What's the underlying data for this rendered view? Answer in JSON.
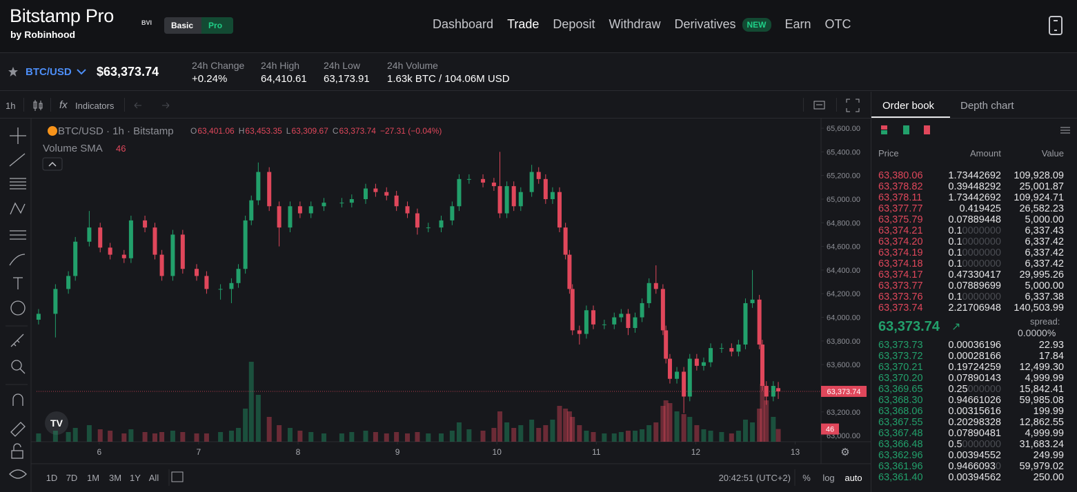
{
  "header": {
    "logo": "Bitstamp Pro",
    "logo_badge": "BVI",
    "logo_sub": "by Robinhood",
    "modes": [
      "Basic",
      "Pro"
    ],
    "nav": [
      {
        "label": "Dashboard"
      },
      {
        "label": "Trade"
      },
      {
        "label": "Deposit"
      },
      {
        "label": "Withdraw"
      },
      {
        "label": "Derivatives",
        "badge": "NEW"
      },
      {
        "label": "Earn"
      },
      {
        "label": "OTC"
      }
    ]
  },
  "ticker": {
    "pair": "BTC/USD",
    "price": "$63,373.74",
    "stats": [
      {
        "label": "24h Change",
        "value": "+0.24%"
      },
      {
        "label": "24h High",
        "value": "64,410.61"
      },
      {
        "label": "24h Low",
        "value": "63,173.91"
      },
      {
        "label": "24h Volume",
        "value": "1.63k BTC / 104.06M USD"
      }
    ]
  },
  "toolbar": {
    "interval": "1h",
    "indicators": "Indicators"
  },
  "chart_data": {
    "type": "candlestick",
    "legend": {
      "title": "BTC/USD · 1h · Bitstamp",
      "ohlc": [
        {
          "label": "O",
          "value": "63,401.06"
        },
        {
          "label": "H",
          "value": "63,453.35"
        },
        {
          "label": "L",
          "value": "63,309.67"
        },
        {
          "label": "C",
          "value": "63,373.74"
        }
      ],
      "change": "−27.31 (−0.04%)"
    },
    "indicator": {
      "name": "Volume SMA",
      "value": "46"
    },
    "price_tag": "63,373.74",
    "volume_tag": "46",
    "up_color": "#22a06b",
    "down_color": "#e0475b",
    "x": [
      5.39,
      5.56,
      5.69,
      5.76,
      5.9,
      6.01,
      6.11,
      6.25,
      6.32,
      6.46,
      6.56,
      6.63,
      6.74,
      6.84,
      6.98,
      7.08,
      7.22,
      7.33,
      7.4,
      7.47,
      7.53,
      7.6,
      7.71,
      7.81,
      7.92,
      8.02,
      8.13,
      8.26,
      8.44,
      8.54,
      8.68,
      8.78,
      8.89,
      8.99,
      9.1,
      9.2,
      9.31,
      9.44,
      9.55,
      9.62,
      9.72,
      9.86,
      9.97,
      10.03,
      10.1,
      10.17,
      10.24,
      10.35,
      10.42,
      10.49,
      10.56,
      10.63,
      10.69,
      10.73,
      10.76,
      10.83,
      10.9,
      10.97,
      11.08,
      11.18,
      11.25,
      11.32,
      11.39,
      11.46,
      11.53,
      11.6,
      11.67,
      11.7,
      11.74,
      11.81,
      11.88,
      11.94,
      12.01,
      12.08,
      12.15,
      12.26,
      12.36,
      12.43,
      12.5,
      12.57,
      12.64,
      12.67,
      12.71,
      12.78,
      12.83
    ],
    "open": [
      63980,
      64030,
      64240,
      64350,
      64640,
      64760,
      64590,
      64530,
      64500,
      64820,
      64760,
      64530,
      64350,
      64700,
      64410,
      64350,
      64240,
      64240,
      64290,
      64410,
      64820,
      64990,
      65230,
      64940,
      64760,
      64940,
      64880,
      64940,
      64970,
      64970,
      65000,
      65090,
      65060,
      65030,
      64940,
      64880,
      64760,
      64760,
      64820,
      64940,
      65170,
      65170,
      65140,
      65110,
      64880,
      65110,
      64940,
      65060,
      65230,
      65170,
      65000,
      65060,
      64760,
      64530,
      64240,
      63890,
      63860,
      64060,
      63940,
      63940,
      64000,
      64030,
      63910,
      64000,
      64120,
      64290,
      64240,
      63890,
      63650,
      63480,
      63540,
      63330,
      63650,
      63590,
      63620,
      63740,
      63740,
      63710,
      63770,
      64120,
      64150,
      63770,
      63420,
      63330,
      63401.06
    ],
    "high": [
      64070,
      64280,
      64390,
      64680,
      64900,
      64800,
      64630,
      64570,
      64860,
      64860,
      64800,
      64570,
      64740,
      64740,
      64450,
      64390,
      64280,
      64330,
      64450,
      64860,
      65030,
      65310,
      65270,
      64980,
      64980,
      64980,
      64980,
      65010,
      65010,
      65040,
      65130,
      65130,
      65100,
      65070,
      64980,
      64920,
      64800,
      64860,
      64980,
      65210,
      65210,
      65210,
      65180,
      65400,
      65150,
      65150,
      65100,
      65290,
      65270,
      65210,
      65100,
      65100,
      64800,
      64570,
      64280,
      63930,
      64100,
      64100,
      63980,
      64040,
      64070,
      64070,
      64040,
      64160,
      64330,
      64440,
      64280,
      63930,
      63690,
      63580,
      63580,
      63690,
      63690,
      63660,
      63780,
      63780,
      63780,
      63810,
      64160,
      64400,
      64190,
      63810,
      63460,
      63460,
      63453.35
    ],
    "low": [
      63940,
      63830,
      64200,
      64310,
      64600,
      64550,
      64490,
      64460,
      64460,
      64720,
      64490,
      64310,
      64310,
      64370,
      64310,
      64200,
      64150,
      64120,
      64250,
      64370,
      64780,
      64950,
      64900,
      64600,
      64720,
      64840,
      64840,
      64900,
      64930,
      64930,
      64960,
      65020,
      64990,
      64900,
      64840,
      64700,
      64720,
      64720,
      64780,
      64900,
      65130,
      65100,
      65070,
      64840,
      64840,
      64900,
      64900,
      65020,
      65130,
      64960,
      64960,
      64720,
      64490,
      64200,
      63850,
      63770,
      63820,
      63900,
      63900,
      63900,
      63960,
      63850,
      63870,
      63960,
      64080,
      64200,
      63850,
      63610,
      63440,
      63440,
      63190,
      63290,
      63550,
      63550,
      63580,
      63700,
      63670,
      63670,
      63730,
      64080,
      63730,
      63380,
      63260,
      63290,
      63309.67
    ],
    "close": [
      64030,
      64240,
      64350,
      64640,
      64760,
      64590,
      64530,
      64500,
      64820,
      64760,
      64530,
      64350,
      64700,
      64410,
      64350,
      64240,
      64240,
      64290,
      64410,
      64820,
      64990,
      65230,
      64940,
      64760,
      64940,
      64880,
      64940,
      64970,
      64970,
      65000,
      65090,
      65060,
      65030,
      64940,
      64880,
      64760,
      64760,
      64820,
      64940,
      65170,
      65170,
      65140,
      65110,
      64880,
      65110,
      64940,
      65060,
      65230,
      65170,
      65000,
      65060,
      64760,
      64530,
      64240,
      63890,
      63860,
      64060,
      63940,
      63940,
      64000,
      64030,
      63910,
      64000,
      64120,
      64290,
      64240,
      63890,
      63650,
      63480,
      63540,
      63330,
      63650,
      63590,
      63620,
      63740,
      63740,
      63710,
      63770,
      64120,
      64150,
      63770,
      63420,
      63330,
      63420,
      63373.74
    ],
    "volume": [
      30,
      40,
      35,
      50,
      60,
      45,
      40,
      30,
      45,
      35,
      30,
      35,
      40,
      35,
      30,
      30,
      35,
      40,
      50,
      120,
      290,
      170,
      90,
      60,
      50,
      40,
      35,
      30,
      30,
      35,
      40,
      35,
      30,
      35,
      30,
      35,
      30,
      30,
      40,
      70,
      45,
      40,
      50,
      110,
      70,
      50,
      60,
      80,
      50,
      60,
      80,
      130,
      120,
      110,
      90,
      60,
      40,
      35,
      30,
      30,
      35,
      40,
      40,
      45,
      60,
      70,
      130,
      150,
      140,
      110,
      100,
      90,
      60,
      45,
      40,
      35,
      30,
      40,
      80,
      70,
      120,
      210,
      150,
      90,
      46
    ],
    "xlim": [
      5.37,
      13.26
    ],
    "xticks": [
      6,
      7,
      8,
      9,
      10,
      11,
      12,
      13
    ],
    "ylim": [
      62948,
      65682
    ],
    "yticks": [
      {
        "value": 63000,
        "label": "63,000.00"
      },
      {
        "value": 63200,
        "label": "63,200.00"
      },
      {
        "value": 63400,
        "label": "63,400.00"
      },
      {
        "value": 63600,
        "label": "63,600.00"
      },
      {
        "value": 63800,
        "label": "63,800.00"
      },
      {
        "value": 64000,
        "label": "64,000.00"
      },
      {
        "value": 64200,
        "label": "64,200.00"
      },
      {
        "value": 64400,
        "label": "64,400.00"
      },
      {
        "value": 64600,
        "label": "64,600.00"
      },
      {
        "value": 64800,
        "label": "64,800.00"
      },
      {
        "value": 65000,
        "label": "65,000.00"
      },
      {
        "value": 65200,
        "label": "65,200.00"
      },
      {
        "value": 65400,
        "label": "65,400.00"
      },
      {
        "value": 65600,
        "label": "65,600.00"
      }
    ],
    "volume_lim": [
      0,
      300
    ]
  },
  "footer": {
    "ranges": [
      "1D",
      "7D",
      "1M",
      "3M",
      "1Y",
      "All"
    ],
    "time": "20:42:51 (UTC+2)",
    "options": [
      "%",
      "log",
      "auto"
    ]
  },
  "order_book": {
    "tabs": [
      "Order book",
      "Depth chart"
    ],
    "columns": [
      "Price",
      "Amount",
      "Value"
    ],
    "asks": [
      [
        "63,380.06",
        "1.73442692",
        "109,928.09"
      ],
      [
        "63,378.82",
        "0.39448292",
        "25,001.87"
      ],
      [
        "63,378.11",
        "1.73442692",
        "109,924.71"
      ],
      [
        "63,377.77",
        "0.419425",
        "26,582.23"
      ],
      [
        "63,375.79",
        "0.07889448",
        "5,000.00"
      ],
      [
        "63,374.21",
        "0.10000000",
        "6,337.43"
      ],
      [
        "63,374.20",
        "0.10000000",
        "6,337.42"
      ],
      [
        "63,374.19",
        "0.10000000",
        "6,337.42"
      ],
      [
        "63,374.18",
        "0.10000000",
        "6,337.42"
      ],
      [
        "63,374.17",
        "0.47330417",
        "29,995.26"
      ],
      [
        "63,373.77",
        "0.07889699",
        "5,000.00"
      ],
      [
        "63,373.76",
        "0.10000000",
        "6,337.38"
      ],
      [
        "63,373.74",
        "2.21706948",
        "140,503.99"
      ]
    ],
    "mid_price": "63,373.74",
    "mid_arrow": "↗",
    "spread_label": "spread:",
    "spread": "0.0000%",
    "bids": [
      [
        "63,373.73",
        "0.00036196",
        "22.93"
      ],
      [
        "63,373.72",
        "0.00028166",
        "17.84"
      ],
      [
        "63,370.21",
        "0.19724259",
        "12,499.30"
      ],
      [
        "63,370.20",
        "0.07890143",
        "4,999.99"
      ],
      [
        "63,369.65",
        "0.25000000",
        "15,842.41"
      ],
      [
        "63,368.30",
        "0.94661026",
        "59,985.08"
      ],
      [
        "63,368.06",
        "0.00315616",
        "199.99"
      ],
      [
        "63,367.55",
        "0.20298328",
        "12,862.55"
      ],
      [
        "63,367.48",
        "0.07890481",
        "4,999.99"
      ],
      [
        "63,366.48",
        "0.50000000",
        "31,683.24"
      ],
      [
        "63,362.96",
        "0.00394552",
        "249.99"
      ],
      [
        "63,361.96",
        "0.94660930",
        "59,979.02"
      ],
      [
        "63,361.40",
        "0.00394562",
        "250.00"
      ]
    ]
  }
}
